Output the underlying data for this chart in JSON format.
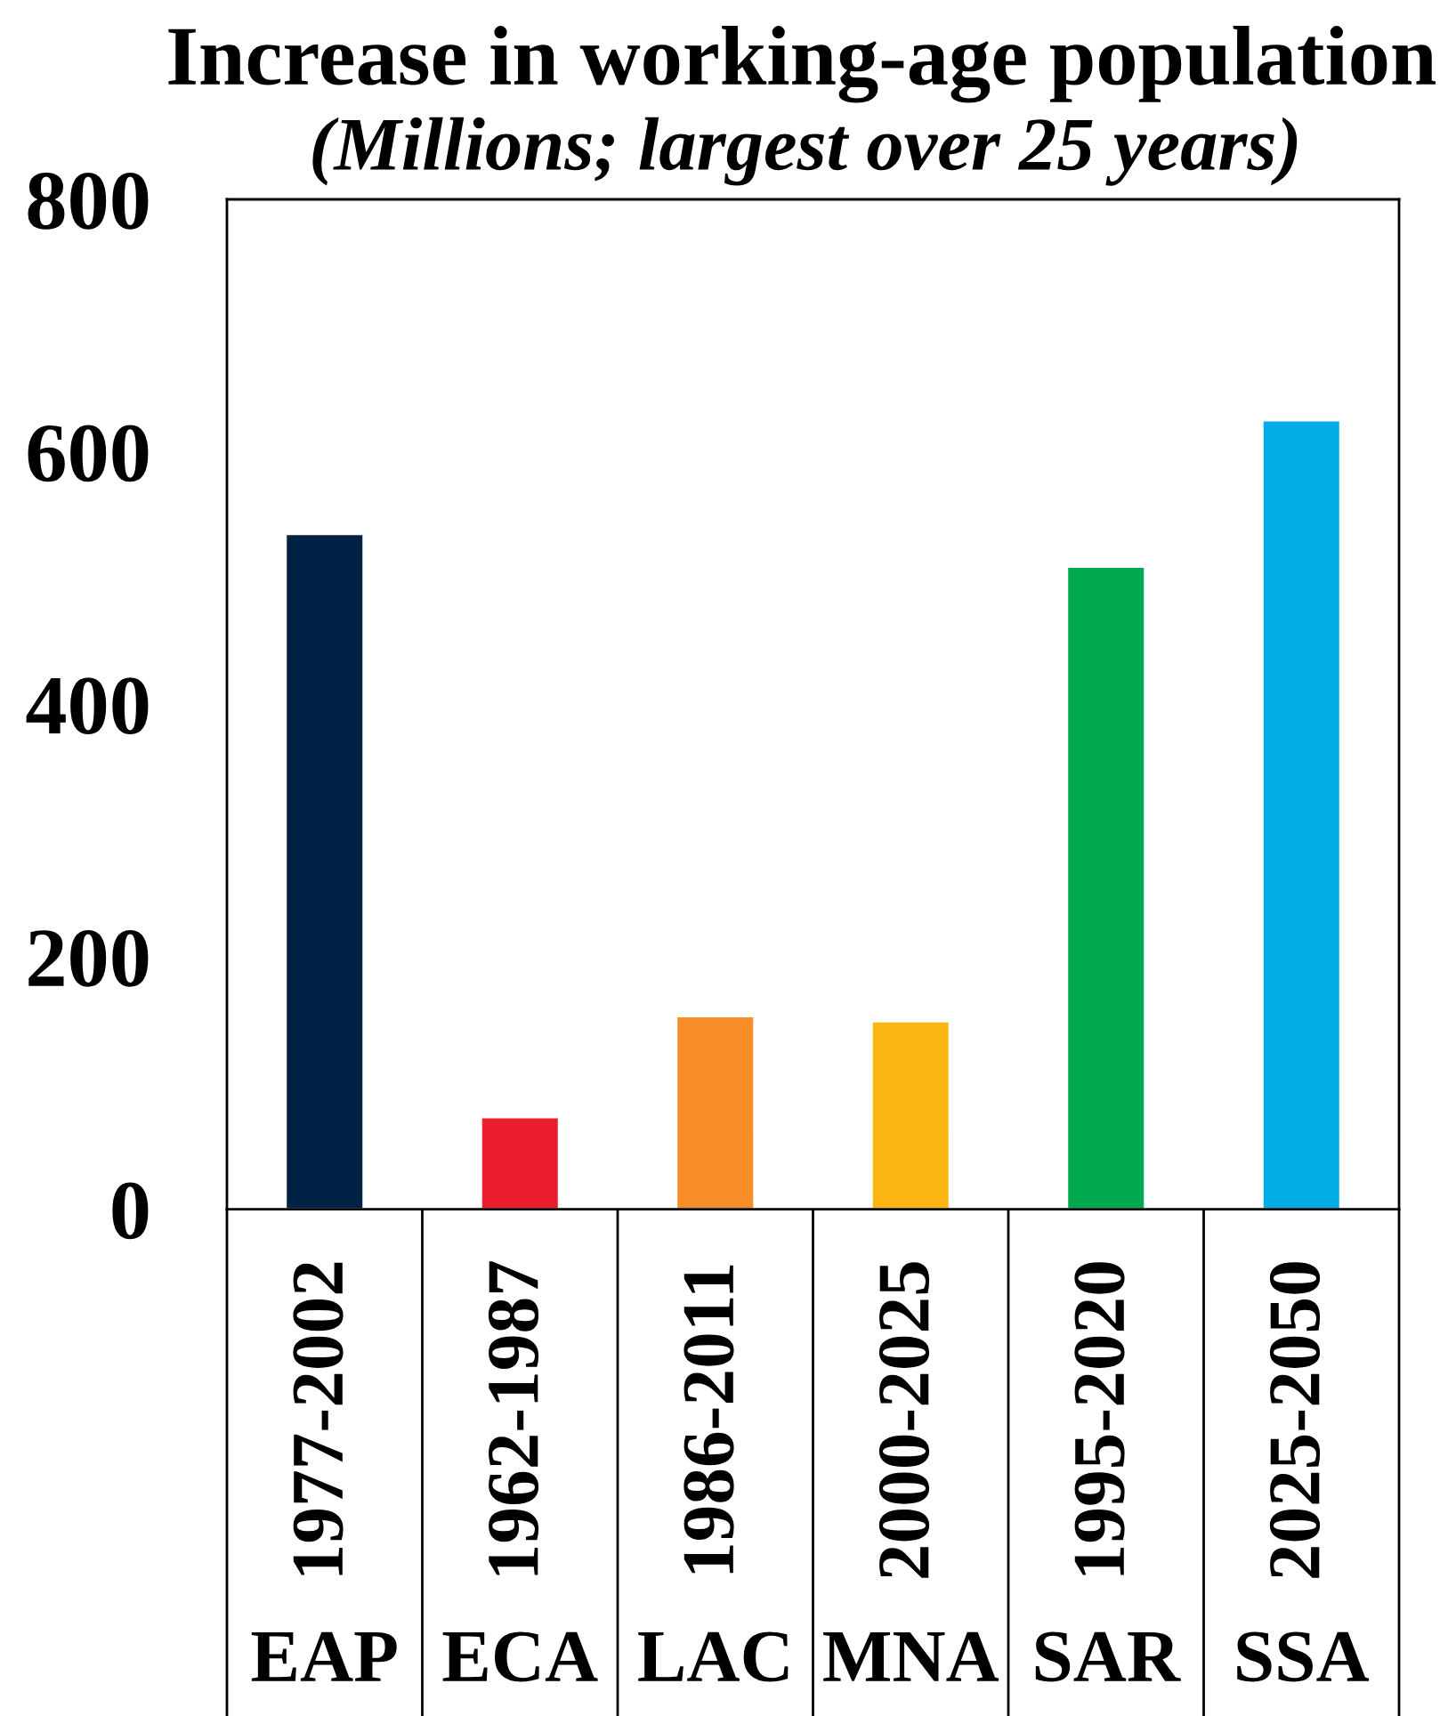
{
  "chart_data": {
    "type": "bar",
    "title": "Increase in working-age population",
    "subtitle": "(Millions; largest over 25 years)",
    "categories": [
      "EAP",
      "ECA",
      "LAC",
      "MNA",
      "SAR",
      "SSA"
    ],
    "values": [
      535,
      73,
      153,
      149,
      509,
      625
    ],
    "colors": [
      "#002244",
      "#eb1c2d",
      "#f78d28",
      "#fdb714",
      "#00a84f",
      "#00ade4"
    ],
    "ylim": [
      0,
      800
    ],
    "yticks": [
      0,
      200,
      400,
      600,
      800
    ],
    "annotations": [
      "1977-2002",
      "1962-1987",
      "1986-2011",
      "2000-2025",
      "1995-2020",
      "2025-2050"
    ]
  }
}
